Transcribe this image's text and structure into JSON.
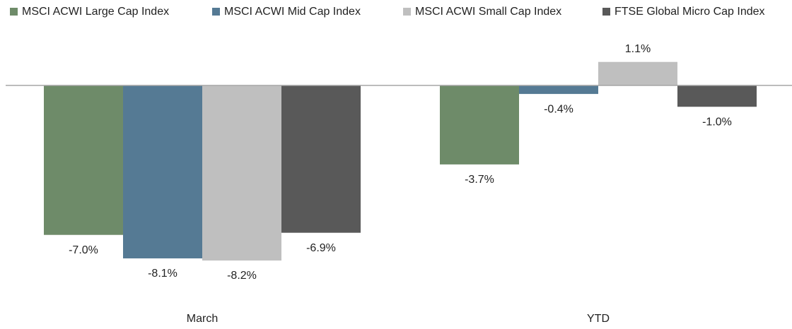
{
  "chart_data": {
    "type": "bar",
    "categories": [
      "March",
      "YTD"
    ],
    "series": [
      {
        "name": "MSCI ACWI Large Cap Index",
        "color": "#6e8b69",
        "values": [
          -7.0,
          -3.7
        ],
        "value_labels": [
          "-7.0%",
          "-3.7%"
        ]
      },
      {
        "name": "MSCI ACWI Mid Cap Index",
        "color": "#557a94",
        "values": [
          -8.1,
          -0.4
        ],
        "value_labels": [
          "-8.1%",
          "-0.4%"
        ]
      },
      {
        "name": "MSCI ACWI Small Cap Index",
        "color": "#bfbfbf",
        "values": [
          -8.2,
          1.1
        ],
        "value_labels": [
          "-8.2%",
          "1.1%"
        ]
      },
      {
        "name": "FTSE Global Micro Cap Index",
        "color": "#595959",
        "values": [
          -6.9,
          -1.0
        ],
        "value_labels": [
          "-6.9%",
          "-1.0%"
        ]
      }
    ],
    "ylim": [
      -9,
      2
    ],
    "legend": "top"
  }
}
